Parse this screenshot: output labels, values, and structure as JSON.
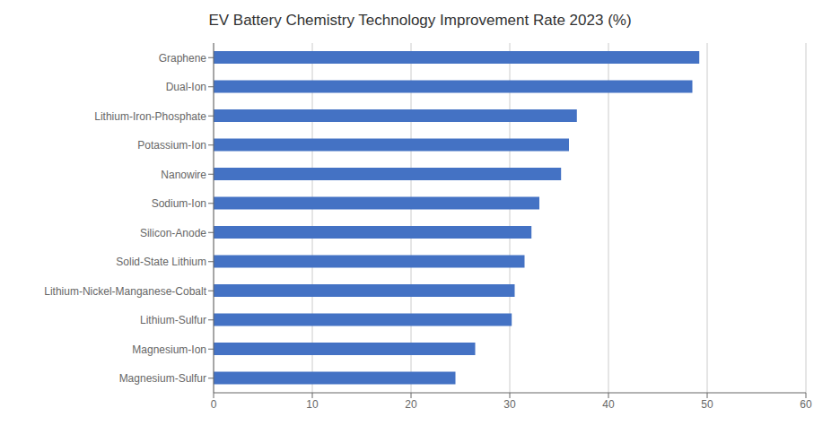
{
  "chart_data": {
    "type": "bar",
    "title": "EV Battery Chemistry Technology Improvement Rate 2023 (%)",
    "orientation": "horizontal",
    "categories": [
      "Magnesium-Sulfur",
      "Magnesium-Ion",
      "Lithium-Sulfur",
      "Lithium-Nickel-Manganese-Cobalt",
      "Solid-State Lithium",
      "Silicon-Anode",
      "Sodium-Ion",
      "Nanowire",
      "Potassium-Ion",
      "Lithium-Iron-Phosphate",
      "Dual-Ion",
      "Graphene"
    ],
    "values": [
      24.5,
      26.5,
      30.2,
      30.5,
      31.5,
      32.2,
      33.0,
      35.2,
      36.0,
      36.8,
      48.5,
      49.2
    ],
    "color": "#4472c4",
    "xlim": [
      0,
      60
    ],
    "xticks": [
      0,
      10,
      20,
      30,
      40,
      50,
      60
    ],
    "grid": true
  }
}
